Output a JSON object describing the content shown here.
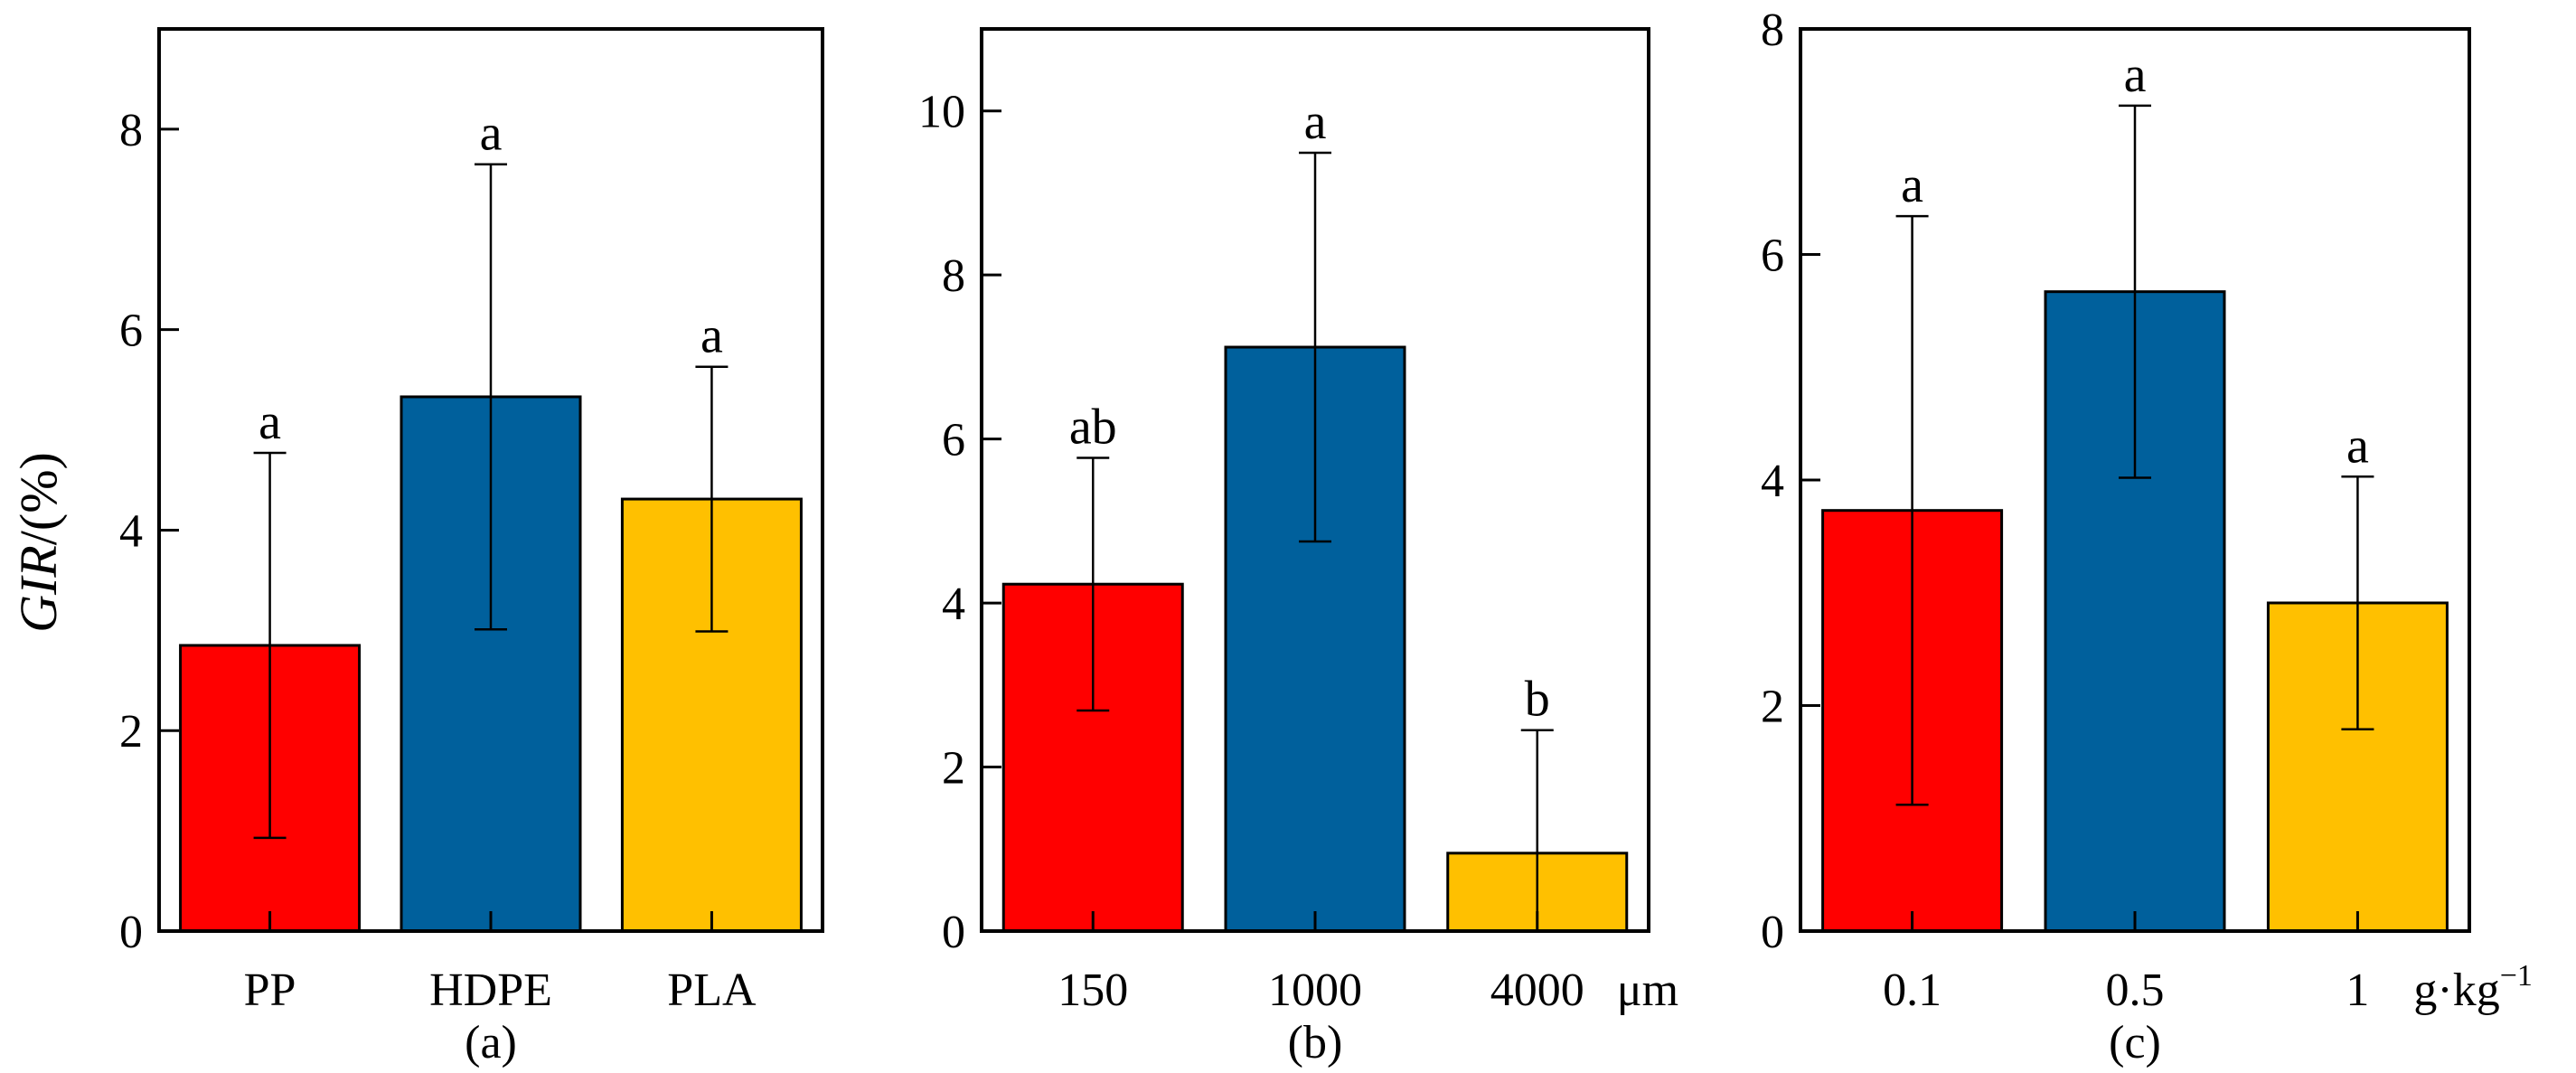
{
  "figure": {
    "ylabel_italic": "GIR",
    "ylabel_rest": "/(%)"
  },
  "colors": {
    "red": "#ff0000",
    "blue": "#00609c",
    "yellow": "#ffc000",
    "axis": "#000000"
  },
  "chart_data": [
    {
      "type": "bar",
      "panel": "(a)",
      "categories": [
        "PP",
        "HDPE",
        "PLA"
      ],
      "values": [
        2.85,
        5.33,
        4.31
      ],
      "errors": [
        1.92,
        2.32,
        1.32
      ],
      "significance": [
        "a",
        "a",
        "a"
      ],
      "colors": [
        "#ff0000",
        "#00609c",
        "#ffc000"
      ],
      "unit": "",
      "ylim": [
        0,
        9
      ],
      "yticks": [
        0,
        2,
        4,
        6,
        8
      ],
      "ylabel": "GIR/(%)"
    },
    {
      "type": "bar",
      "panel": "(b)",
      "categories": [
        "150",
        "1000",
        "4000"
      ],
      "values": [
        4.23,
        7.12,
        0.95
      ],
      "errors": [
        1.54,
        2.37,
        1.5
      ],
      "significance": [
        "ab",
        "a",
        "b"
      ],
      "colors": [
        "#ff0000",
        "#00609c",
        "#ffc000"
      ],
      "unit": "μm",
      "ylim": [
        0,
        11
      ],
      "yticks": [
        0,
        2,
        4,
        6,
        8,
        10
      ],
      "ylabel": ""
    },
    {
      "type": "bar",
      "panel": "(c)",
      "categories": [
        "0.1",
        "0.5",
        "1"
      ],
      "values": [
        3.73,
        5.67,
        2.91
      ],
      "errors": [
        2.61,
        1.65,
        1.12
      ],
      "significance": [
        "a",
        "a",
        "a"
      ],
      "colors": [
        "#ff0000",
        "#00609c",
        "#ffc000"
      ],
      "unit": "g·kg",
      "unit_superscript": "−1",
      "ylim": [
        0,
        8
      ],
      "yticks": [
        0,
        2,
        4,
        6,
        8
      ],
      "ylabel": ""
    }
  ]
}
